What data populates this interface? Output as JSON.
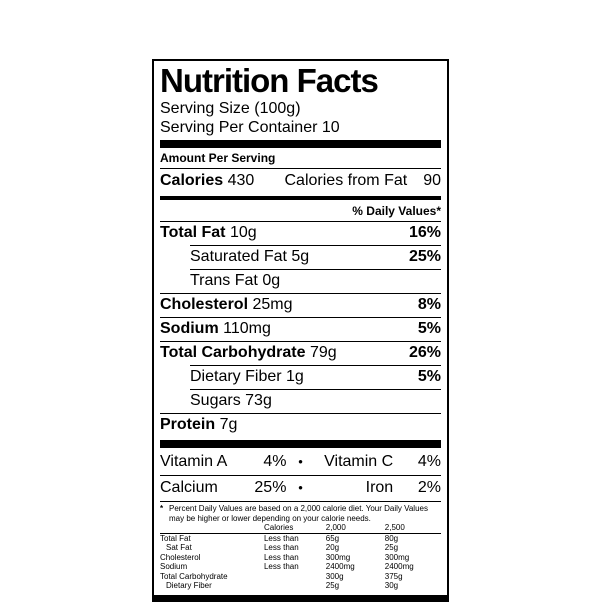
{
  "label": {
    "title": "Nutrition Facts",
    "serving_size": "Serving Size (100g)",
    "servings_per_container": "Serving Per Container 10",
    "amount_per_serving": "Amount Per Serving",
    "calories_label": "Calories",
    "calories_value": "430",
    "calories_from_fat_label": "Calories from Fat",
    "calories_from_fat_value": "90",
    "daily_values_header": "% Daily Values*",
    "bullet": "•",
    "nutrients": [
      {
        "name": "Total Fat",
        "amount": "10g",
        "dv": "16%"
      },
      {
        "name": "Saturated Fat",
        "amount": "5g",
        "dv": "25%"
      },
      {
        "name": "Trans Fat",
        "amount": "0g",
        "dv": ""
      },
      {
        "name": "Cholesterol",
        "amount": "25mg",
        "dv": "8%"
      },
      {
        "name": "Sodium",
        "amount": "110mg",
        "dv": "5%"
      },
      {
        "name": "Total Carbohydrate",
        "amount": "79g",
        "dv": "26%"
      },
      {
        "name": "Dietary Fiber",
        "amount": "1g",
        "dv": "5%"
      },
      {
        "name": "Sugars",
        "amount": "73g",
        "dv": ""
      },
      {
        "name": "Protein",
        "amount": "7g",
        "dv": ""
      }
    ],
    "vitamins": [
      {
        "left_label": "Vitamin A",
        "left_value": "4%",
        "right_label": "Vitamin C",
        "right_value": "4%"
      },
      {
        "left_label": "Calcium",
        "left_value": "25%",
        "right_label": "Iron",
        "right_value": "2%"
      }
    ],
    "footnote_marker": "*",
    "footnote_text": "Percent Daily Values are based on a 2,000 calorie diet. Your Daily Values may be higher or lower depending on your calorie needs.",
    "footer_table": {
      "col_calories": "Calories",
      "col_2000": "2,000",
      "col_2500": "2,500",
      "rows": [
        {
          "name": "Total Fat",
          "qualifier": "Less than",
          "v2000": "65g",
          "v2500": "80g"
        },
        {
          "name": "Sat Fat",
          "qualifier": "Less than",
          "v2000": "20g",
          "v2500": "25g"
        },
        {
          "name": "Cholesterol",
          "qualifier": "Less than",
          "v2000": "300mg",
          "v2500": "300mg"
        },
        {
          "name": "Sodium",
          "qualifier": "Less than",
          "v2000": "2400mg",
          "v2500": "2400mg"
        },
        {
          "name": "Total Carbohydrate",
          "qualifier": "",
          "v2000": "300g",
          "v2500": "375g"
        },
        {
          "name": "Dietary Fiber",
          "qualifier": "",
          "v2000": "25g",
          "v2500": "30g"
        }
      ]
    }
  }
}
